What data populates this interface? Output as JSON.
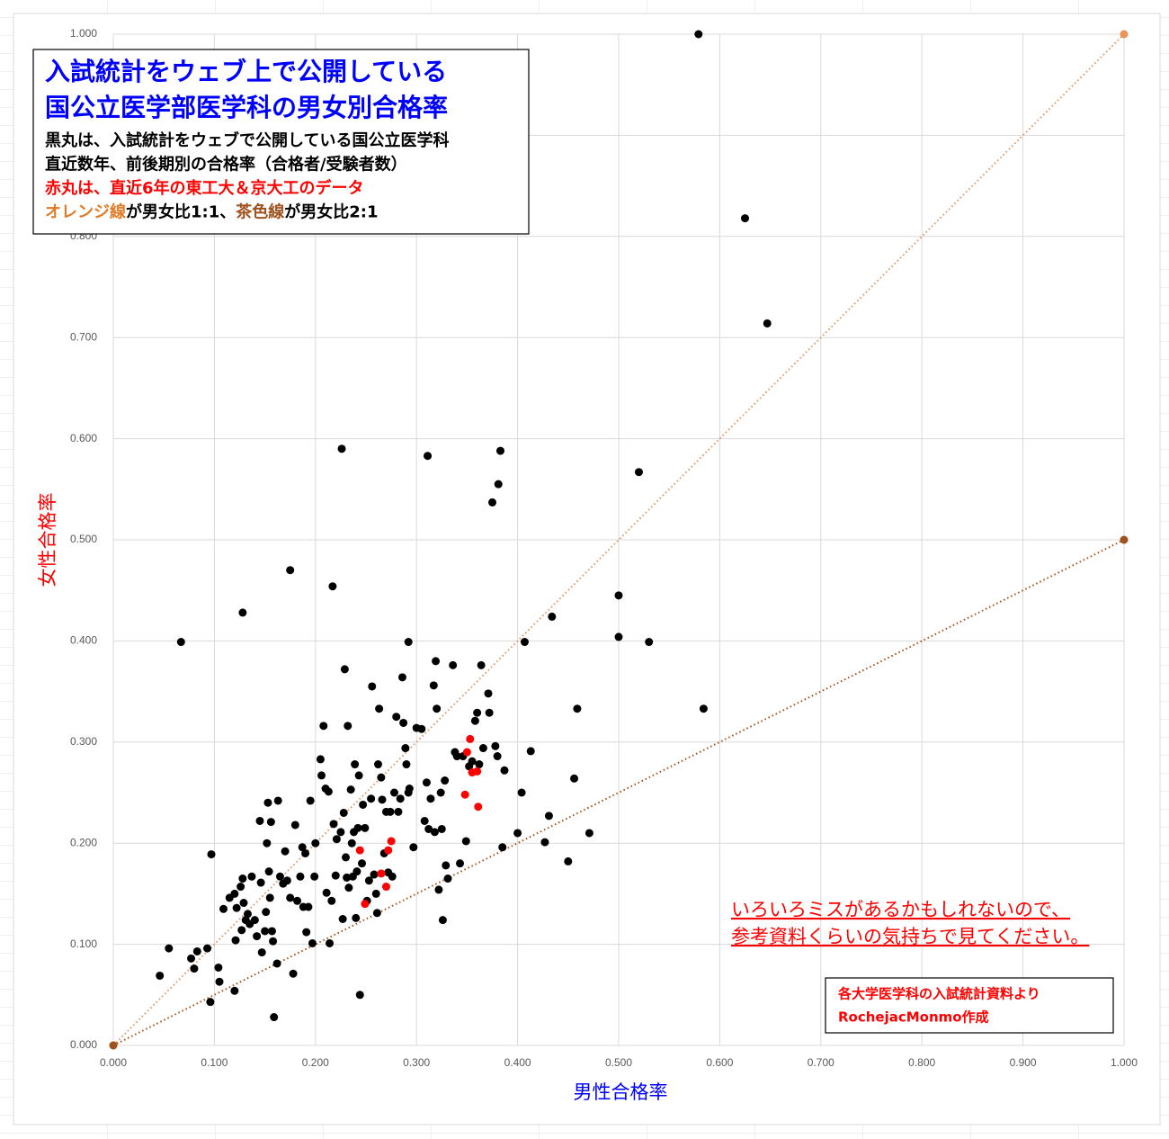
{
  "chart_data": {
    "type": "scatter",
    "title": [
      "入試統計をウェブ上で公開している",
      "国公立医学部医学科の男女別合格率"
    ],
    "title_color": "#0000ff",
    "subtitle_lines": [
      [
        {
          "text": "黒丸は、入試統計をウェブで公開している国公立医学科",
          "color": "#000000"
        }
      ],
      [
        {
          "text": "直近数年、前後期別の合格率（合格者/受験者数）",
          "color": "#000000"
        }
      ],
      [
        {
          "text": "赤丸は、直近6年の東工大＆京大工のデータ",
          "color": "#ff0000"
        }
      ],
      [
        {
          "text": "オレンジ線",
          "color": "#e07b28"
        },
        {
          "text": "が男女比1:1、",
          "color": "#000000"
        },
        {
          "text": "茶色線",
          "color": "#a0521e"
        },
        {
          "text": "が男女比2:1",
          "color": "#000000"
        }
      ]
    ],
    "xlabel": "男性合格率",
    "xlabel_color": "#0000ff",
    "ylabel": "女性合格率",
    "ylabel_color": "#ff0000",
    "note": [
      "いろいろミスがあるかもしれないので、",
      "参考資料くらいの気持ちで見てください。"
    ],
    "note_color": "#ff0000",
    "source": [
      "各大学医学科の入試統計資料より",
      "RochejacMonmo作成"
    ],
    "source_color": "#ff0000",
    "xlim": [
      0,
      1
    ],
    "ylim": [
      0,
      1
    ],
    "grid": true,
    "xticks": [
      {
        "value": 0,
        "label": "0.000"
      },
      {
        "value": 0.1,
        "label": "0.100"
      },
      {
        "value": 0.2,
        "label": "0.200"
      },
      {
        "value": 0.3,
        "label": "0.300"
      },
      {
        "value": 0.4,
        "label": "0.400"
      },
      {
        "value": 0.5,
        "label": "0.500"
      },
      {
        "value": 0.6,
        "label": "0.600"
      },
      {
        "value": 0.7,
        "label": "0.700"
      },
      {
        "value": 0.8,
        "label": "0.800"
      },
      {
        "value": 0.9,
        "label": "0.900"
      },
      {
        "value": 1,
        "label": "1.000"
      }
    ],
    "yticks": [
      {
        "value": 0,
        "label": "0.000"
      },
      {
        "value": 0.1,
        "label": "0.100"
      },
      {
        "value": 0.2,
        "label": "0.200"
      },
      {
        "value": 0.3,
        "label": "0.300"
      },
      {
        "value": 0.4,
        "label": "0.400"
      },
      {
        "value": 0.5,
        "label": "0.500"
      },
      {
        "value": 0.6,
        "label": "0.600"
      },
      {
        "value": 0.7,
        "label": "0.700"
      },
      {
        "value": 0.8,
        "label": "0.800"
      },
      {
        "value": 0.9,
        "label": "0.900"
      },
      {
        "value": 1,
        "label": "1.000"
      }
    ],
    "lines": [
      {
        "color": "#e8955a",
        "x": [
          0,
          1
        ],
        "values": [
          0,
          1
        ]
      },
      {
        "color": "#a0521e",
        "x": [
          0,
          1
        ],
        "values": [
          0,
          0.5
        ]
      }
    ],
    "series": [
      {
        "color": "#000000",
        "x": [
          0.579,
          0.625,
          0.647,
          0.226,
          0.311,
          0.383,
          0.381,
          0.375,
          0.52,
          0.175,
          0.217,
          0.128,
          0.067,
          0.292,
          0.407,
          0.434,
          0.5,
          0.5,
          0.53,
          0.584,
          0.459,
          0.456,
          0.471,
          0.45,
          0.427,
          0.431,
          0.4,
          0.404,
          0.413,
          0.385,
          0.046,
          0.055,
          0.077,
          0.08,
          0.083,
          0.093,
          0.096,
          0.097,
          0.104,
          0.105,
          0.109,
          0.115,
          0.12,
          0.12,
          0.121,
          0.122,
          0.126,
          0.127,
          0.128,
          0.129,
          0.131,
          0.133,
          0.135,
          0.137,
          0.14,
          0.142,
          0.145,
          0.146,
          0.147,
          0.15,
          0.151,
          0.152,
          0.153,
          0.154,
          0.155,
          0.156,
          0.157,
          0.158,
          0.159,
          0.162,
          0.163,
          0.165,
          0.168,
          0.17,
          0.172,
          0.175,
          0.178,
          0.18,
          0.182,
          0.185,
          0.187,
          0.188,
          0.19,
          0.191,
          0.193,
          0.195,
          0.197,
          0.199,
          0.2,
          0.205,
          0.206,
          0.208,
          0.21,
          0.211,
          0.213,
          0.214,
          0.216,
          0.218,
          0.22,
          0.221,
          0.225,
          0.227,
          0.228,
          0.229,
          0.23,
          0.231,
          0.232,
          0.233,
          0.235,
          0.236,
          0.237,
          0.238,
          0.239,
          0.24,
          0.241,
          0.242,
          0.243,
          0.244,
          0.246,
          0.247,
          0.249,
          0.251,
          0.253,
          0.255,
          0.256,
          0.258,
          0.26,
          0.261,
          0.262,
          0.263,
          0.265,
          0.266,
          0.268,
          0.27,
          0.272,
          0.274,
          0.276,
          0.278,
          0.28,
          0.282,
          0.284,
          0.286,
          0.287,
          0.289,
          0.29,
          0.292,
          0.293,
          0.297,
          0.3,
          0.305,
          0.308,
          0.31,
          0.312,
          0.314,
          0.317,
          0.318,
          0.319,
          0.32,
          0.322,
          0.324,
          0.325,
          0.326,
          0.328,
          0.329,
          0.331,
          0.336,
          0.338,
          0.34,
          0.343,
          0.346,
          0.349,
          0.352,
          0.355,
          0.358,
          0.36,
          0.362,
          0.364,
          0.366,
          0.371,
          0.372,
          0.378,
          0.38,
          0.387
        ],
        "values": [
          1,
          0.818,
          0.714,
          0.59,
          0.583,
          0.588,
          0.555,
          0.537,
          0.567,
          0.47,
          0.454,
          0.428,
          0.399,
          0.399,
          0.399,
          0.424,
          0.445,
          0.404,
          0.399,
          0.333,
          0.333,
          0.264,
          0.21,
          0.182,
          0.201,
          0.227,
          0.21,
          0.25,
          0.291,
          0.196,
          0.069,
          0.096,
          0.086,
          0.076,
          0.093,
          0.096,
          0.043,
          0.189,
          0.077,
          0.063,
          0.135,
          0.146,
          0.054,
          0.15,
          0.104,
          0.136,
          0.157,
          0.114,
          0.165,
          0.141,
          0.124,
          0.13,
          0.12,
          0.167,
          0.124,
          0.108,
          0.222,
          0.161,
          0.092,
          0.113,
          0.132,
          0.2,
          0.24,
          0.172,
          0.146,
          0.221,
          0.113,
          0.103,
          0.028,
          0.081,
          0.242,
          0.167,
          0.16,
          0.192,
          0.163,
          0.146,
          0.071,
          0.218,
          0.143,
          0.167,
          0.196,
          0.137,
          0.19,
          0.112,
          0.137,
          0.242,
          0.101,
          0.167,
          0.2,
          0.283,
          0.267,
          0.316,
          0.254,
          0.151,
          0.251,
          0.101,
          0.143,
          0.219,
          0.168,
          0.204,
          0.211,
          0.125,
          0.23,
          0.372,
          0.186,
          0.166,
          0.316,
          0.156,
          0.253,
          0.2,
          0.167,
          0.211,
          0.278,
          0.126,
          0.172,
          0.215,
          0.267,
          0.05,
          0.18,
          0.238,
          0.215,
          0.143,
          0.163,
          0.244,
          0.355,
          0.169,
          0.15,
          0.131,
          0.278,
          0.333,
          0.265,
          0.243,
          0.19,
          0.231,
          0.171,
          0.231,
          0.167,
          0.25,
          0.325,
          0.231,
          0.244,
          0.364,
          0.319,
          0.294,
          0.278,
          0.25,
          0.254,
          0.196,
          0.314,
          0.313,
          0.222,
          0.26,
          0.214,
          0.244,
          0.356,
          0.211,
          0.38,
          0.333,
          0.154,
          0.25,
          0.214,
          0.124,
          0.262,
          0.178,
          0.165,
          0.376,
          0.29,
          0.286,
          0.18,
          0.286,
          0.202,
          0.276,
          0.281,
          0.321,
          0.329,
          0.278,
          0.376,
          0.294,
          0.348,
          0.329,
          0.296,
          0.286,
          0.272
        ]
      },
      {
        "color": "#ff0000",
        "x": [
          0.353,
          0.35,
          0.355,
          0.36,
          0.348,
          0.361,
          0.275,
          0.272,
          0.244,
          0.265,
          0.27,
          0.249
        ],
        "values": [
          0.303,
          0.29,
          0.27,
          0.271,
          0.248,
          0.236,
          0.202,
          0.193,
          0.193,
          0.17,
          0.157,
          0.14
        ]
      }
    ]
  }
}
